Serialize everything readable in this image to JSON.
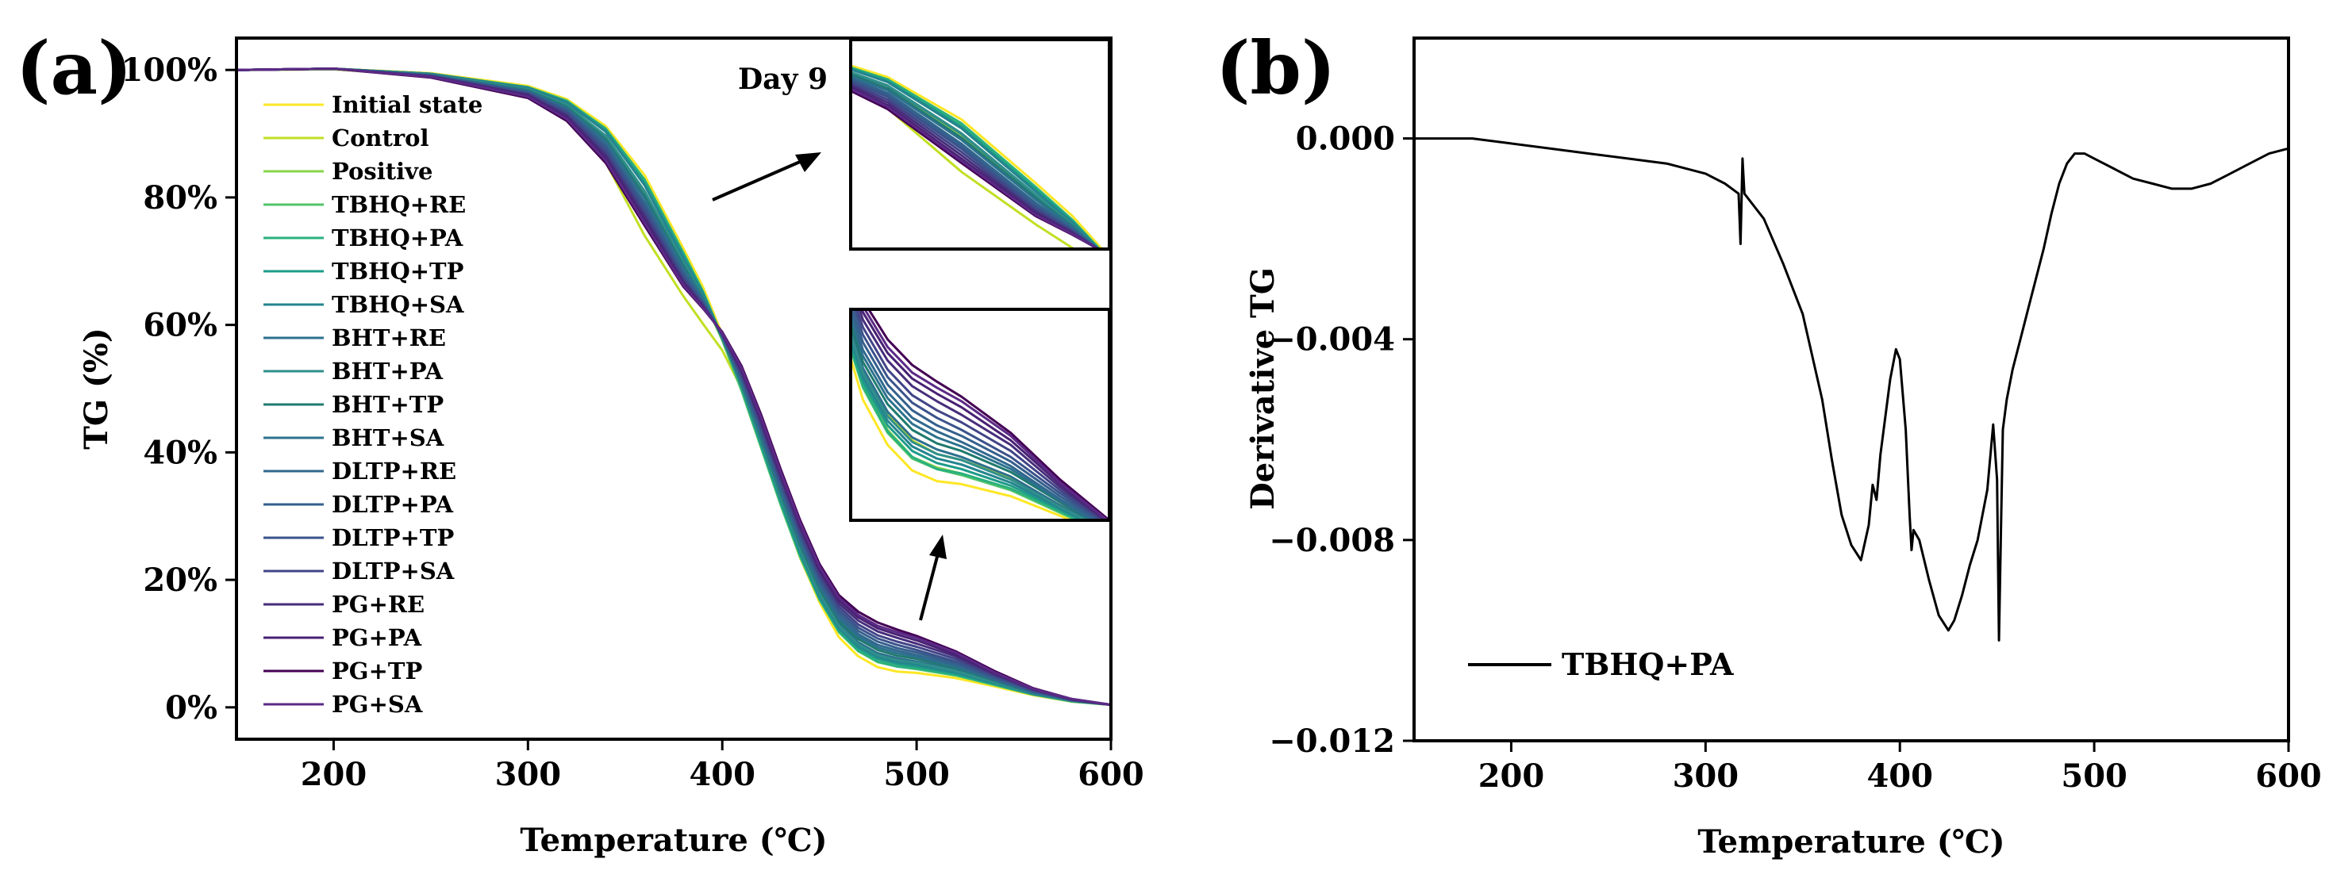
{
  "chart_data": [
    {
      "panel": "(a)",
      "type": "line",
      "xlabel": "Temperature (℃)",
      "ylabel": "TG (%)",
      "xlim": [
        150,
        600
      ],
      "ylim": [
        -5,
        105
      ],
      "xticks": [
        "200",
        "300",
        "400",
        "500",
        "600"
      ],
      "xtick_values": [
        200,
        300,
        400,
        500,
        600
      ],
      "yticks": [
        "0%",
        "20%",
        "40%",
        "60%",
        "80%",
        "100%"
      ],
      "ytick_values": [
        0,
        20,
        40,
        60,
        80,
        100
      ],
      "inset_label": "Day 9",
      "x": [
        150,
        200,
        250,
        300,
        320,
        340,
        360,
        380,
        390,
        400,
        410,
        420,
        430,
        440,
        450,
        460,
        470,
        480,
        490,
        500,
        520,
        540,
        560,
        580,
        600
      ],
      "series": [
        {
          "name": "Initial state",
          "color": "#fde725",
          "values": [
            100,
            100.2,
            99.5,
            97.5,
            95.4,
            91.2,
            83.5,
            72.0,
            66.0,
            58.5,
            50.0,
            41.0,
            32.0,
            23.5,
            16.5,
            11.0,
            8.0,
            6.3,
            5.6,
            5.4,
            4.6,
            3.3,
            1.9,
            0.9,
            0.4
          ]
        },
        {
          "name": "Control",
          "color": "#c2df23",
          "values": [
            100,
            100.1,
            99.0,
            95.8,
            92.0,
            85.5,
            74.0,
            64.5,
            60.2,
            56.0,
            50.0,
            42.0,
            33.0,
            25.0,
            18.0,
            13.0,
            10.0,
            8.3,
            7.4,
            7.0,
            5.8,
            4.0,
            2.3,
            1.1,
            0.4
          ]
        },
        {
          "name": "Positive",
          "color": "#86d549",
          "values": [
            100,
            100.1,
            99.3,
            97.0,
            94.6,
            89.6,
            80.7,
            69.6,
            64.2,
            57.6,
            50.0,
            41.4,
            32.5,
            24.2,
            17.4,
            12.1,
            9.0,
            7.2,
            6.5,
            6.1,
            5.1,
            3.6,
            2.0,
            1.0,
            0.4
          ]
        },
        {
          "name": "TBHQ+RE",
          "color": "#52c569",
          "values": [
            100,
            100.2,
            99.4,
            97.3,
            95.2,
            90.7,
            82.5,
            70.8,
            64.8,
            57.6,
            49.6,
            40.7,
            31.8,
            23.6,
            16.9,
            11.8,
            8.8,
            7.1,
            6.4,
            6.0,
            5.0,
            3.5,
            2.0,
            0.9,
            0.4
          ]
        },
        {
          "name": "TBHQ+PA",
          "color": "#2ab07f",
          "values": [
            100,
            100.2,
            99.4,
            97.3,
            95.1,
            90.8,
            82.8,
            71.3,
            65.3,
            58.1,
            50.0,
            41.0,
            32.1,
            23.9,
            17.0,
            11.9,
            8.9,
            7.2,
            6.4,
            6.1,
            5.1,
            3.6,
            2.0,
            1.0,
            0.4
          ]
        },
        {
          "name": "TBHQ+TP",
          "color": "#1e9b8a",
          "values": [
            100,
            100.2,
            99.4,
            97.2,
            95.0,
            90.5,
            82.2,
            70.8,
            65.0,
            58.0,
            50.2,
            41.3,
            32.4,
            24.1,
            17.2,
            12.2,
            9.3,
            7.6,
            6.8,
            6.4,
            5.3,
            3.7,
            2.1,
            1.0,
            0.4
          ]
        },
        {
          "name": "TBHQ+SA",
          "color": "#25848e",
          "values": [
            100,
            100.2,
            99.4,
            97.2,
            94.9,
            90.3,
            81.9,
            70.5,
            64.8,
            58.0,
            50.4,
            41.6,
            32.8,
            24.5,
            17.6,
            12.5,
            9.6,
            7.9,
            7.1,
            6.7,
            5.5,
            3.8,
            2.1,
            1.0,
            0.4
          ]
        },
        {
          "name": "BHT+RE",
          "color": "#2d708e",
          "values": [
            100,
            100.2,
            99.3,
            97.0,
            94.5,
            89.6,
            80.9,
            69.8,
            64.4,
            58.0,
            50.6,
            42.0,
            33.3,
            25.1,
            18.2,
            13.1,
            10.2,
            8.5,
            7.7,
            7.2,
            5.9,
            4.0,
            2.2,
            1.0,
            0.4
          ]
        },
        {
          "name": "BHT+PA",
          "color": "#2f8f8b",
          "values": [
            100,
            100.2,
            99.3,
            97.0,
            94.5,
            89.7,
            81.0,
            69.9,
            64.4,
            57.9,
            50.4,
            41.8,
            33.0,
            24.8,
            17.9,
            12.8,
            9.9,
            8.2,
            7.4,
            7.0,
            5.7,
            3.9,
            2.2,
            1.0,
            0.4
          ]
        },
        {
          "name": "BHT+TP",
          "color": "#1f7a6e",
          "values": [
            100,
            100.2,
            99.2,
            96.8,
            94.2,
            89.1,
            80.2,
            69.3,
            64.2,
            58.0,
            50.8,
            42.3,
            33.6,
            25.5,
            18.6,
            13.5,
            10.7,
            9.0,
            8.1,
            7.6,
            6.2,
            4.2,
            2.3,
            1.1,
            0.4
          ]
        },
        {
          "name": "BHT+SA",
          "color": "#2c728e",
          "values": [
            100,
            100.2,
            99.2,
            96.7,
            94.0,
            88.8,
            79.8,
            69.0,
            64.1,
            58.1,
            51.0,
            42.6,
            34.0,
            25.9,
            19.0,
            13.9,
            11.1,
            9.4,
            8.5,
            7.9,
            6.4,
            4.3,
            2.3,
            1.1,
            0.4
          ]
        },
        {
          "name": "DLTP+RE",
          "color": "#31688e",
          "values": [
            100,
            100.2,
            99.2,
            96.6,
            93.8,
            88.3,
            79.1,
            68.4,
            63.8,
            58.2,
            51.3,
            43.0,
            34.4,
            26.3,
            19.4,
            14.3,
            11.5,
            9.8,
            8.9,
            8.2,
            6.6,
            4.4,
            2.4,
            1.1,
            0.4
          ]
        },
        {
          "name": "DLTP+PA",
          "color": "#355f8d",
          "values": [
            100,
            100.2,
            99.1,
            96.5,
            93.6,
            88.0,
            78.7,
            68.0,
            63.6,
            58.3,
            51.6,
            43.4,
            34.8,
            26.7,
            19.8,
            14.8,
            12.0,
            10.3,
            9.3,
            8.6,
            6.9,
            4.6,
            2.5,
            1.1,
            0.4
          ]
        },
        {
          "name": "DLTP+TP",
          "color": "#3b528b",
          "values": [
            100,
            100.2,
            99.1,
            96.4,
            93.4,
            87.6,
            78.2,
            67.6,
            63.4,
            58.4,
            51.9,
            43.8,
            35.3,
            27.2,
            20.3,
            15.3,
            12.5,
            10.8,
            9.8,
            9.0,
            7.2,
            4.8,
            2.6,
            1.2,
            0.4
          ]
        },
        {
          "name": "DLTP+SA",
          "color": "#414487",
          "values": [
            100,
            100.2,
            99.0,
            96.2,
            93.1,
            87.1,
            77.6,
            67.2,
            63.2,
            58.5,
            52.2,
            44.2,
            35.7,
            27.6,
            20.7,
            15.8,
            13.0,
            11.3,
            10.3,
            9.5,
            7.6,
            5.0,
            2.7,
            1.2,
            0.4
          ]
        },
        {
          "name": "PG+RE",
          "color": "#472d7b",
          "values": [
            100,
            100.2,
            99.0,
            96.1,
            92.8,
            86.6,
            77.0,
            66.8,
            63.0,
            58.6,
            52.6,
            44.7,
            36.2,
            28.2,
            21.3,
            16.3,
            13.6,
            11.9,
            10.9,
            10.0,
            8.0,
            5.2,
            2.8,
            1.2,
            0.4
          ]
        },
        {
          "name": "PG+PA",
          "color": "#482173",
          "values": [
            100,
            100.2,
            98.9,
            95.9,
            92.5,
            86.1,
            76.4,
            66.4,
            62.8,
            58.7,
            52.9,
            45.1,
            36.6,
            28.6,
            21.7,
            16.8,
            14.1,
            12.4,
            11.4,
            10.5,
            8.3,
            5.4,
            2.9,
            1.3,
            0.4
          ]
        },
        {
          "name": "PG+TP",
          "color": "#440154",
          "values": [
            100,
            100.2,
            98.8,
            95.6,
            92.0,
            85.4,
            75.6,
            66.0,
            62.6,
            58.9,
            53.5,
            45.9,
            37.4,
            29.4,
            22.5,
            17.6,
            15.0,
            13.3,
            12.2,
            11.2,
            8.8,
            5.7,
            3.0,
            1.3,
            0.4
          ]
        },
        {
          "name": "PG+SA",
          "color": "#5b2a86",
          "values": [
            100,
            100.2,
            98.9,
            95.8,
            92.3,
            85.8,
            76.0,
            66.2,
            62.7,
            58.8,
            53.2,
            45.5,
            37.0,
            29.0,
            22.1,
            17.2,
            14.5,
            12.8,
            11.8,
            10.9,
            8.6,
            5.5,
            2.9,
            1.3,
            0.4
          ]
        }
      ]
    },
    {
      "panel": "(b)",
      "type": "line",
      "xlabel": "Temperature (℃)",
      "ylabel": "Derivative TG",
      "xlim": [
        150,
        600
      ],
      "ylim": [
        -0.012,
        0.002
      ],
      "xticks": [
        "200",
        "300",
        "400",
        "500",
        "600"
      ],
      "xtick_values": [
        200,
        300,
        400,
        500,
        600
      ],
      "yticks": [
        "0.000",
        "−0.004",
        "−0.008",
        "−0.012"
      ],
      "ytick_values": [
        0,
        -0.004,
        -0.008,
        -0.012
      ],
      "series": [
        {
          "name": "TBHQ+PA",
          "color": "#000000",
          "x": [
            150,
            180,
            200,
            220,
            240,
            260,
            280,
            300,
            310,
            317,
            318,
            319,
            320,
            330,
            340,
            350,
            360,
            365,
            370,
            375,
            380,
            384,
            386,
            388,
            390,
            395,
            398,
            400,
            403,
            405,
            406,
            407,
            410,
            415,
            420,
            425,
            428,
            432,
            436,
            440,
            445,
            448,
            450,
            451,
            452,
            453,
            455,
            458,
            462,
            466,
            470,
            474,
            478,
            482,
            486,
            490,
            495,
            500,
            510,
            520,
            530,
            540,
            550,
            560,
            570,
            580,
            590,
            600
          ],
          "values": [
            0.0,
            0.0,
            -0.0001,
            -0.0002,
            -0.0003,
            -0.0004,
            -0.0005,
            -0.0007,
            -0.0009,
            -0.0011,
            -0.0021,
            -0.0004,
            -0.0011,
            -0.0016,
            -0.0025,
            -0.0035,
            -0.0052,
            -0.0064,
            -0.0075,
            -0.0081,
            -0.0084,
            -0.0077,
            -0.0069,
            -0.0072,
            -0.0063,
            -0.0048,
            -0.0042,
            -0.0044,
            -0.0058,
            -0.0075,
            -0.0082,
            -0.0078,
            -0.008,
            -0.0088,
            -0.0095,
            -0.0098,
            -0.0096,
            -0.0091,
            -0.0085,
            -0.008,
            -0.007,
            -0.0057,
            -0.0068,
            -0.01,
            -0.0078,
            -0.0058,
            -0.0052,
            -0.0046,
            -0.004,
            -0.0034,
            -0.0028,
            -0.0022,
            -0.0015,
            -0.0009,
            -0.0005,
            -0.0003,
            -0.0003,
            -0.0004,
            -0.0006,
            -0.0008,
            -0.0009,
            -0.001,
            -0.001,
            -0.0009,
            -0.0007,
            -0.0005,
            -0.0003,
            -0.0002
          ]
        }
      ]
    }
  ]
}
